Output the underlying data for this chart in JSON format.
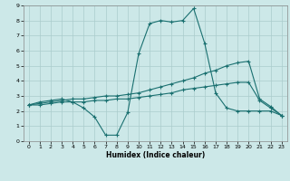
{
  "xlabel": "Humidex (Indice chaleur)",
  "background_color": "#cce8e8",
  "grid_color": "#aacccc",
  "line_color": "#1a7070",
  "xlim": [
    -0.5,
    23.5
  ],
  "ylim": [
    0,
    9
  ],
  "xticks": [
    0,
    1,
    2,
    3,
    4,
    5,
    6,
    7,
    8,
    9,
    10,
    11,
    12,
    13,
    14,
    15,
    16,
    17,
    18,
    19,
    20,
    21,
    22,
    23
  ],
  "yticks": [
    0,
    1,
    2,
    3,
    4,
    5,
    6,
    7,
    8,
    9
  ],
  "line1_x": [
    0,
    1,
    2,
    3,
    4,
    5,
    6,
    7,
    8,
    9,
    10,
    11,
    12,
    13,
    14,
    15,
    16,
    17,
    18,
    19,
    20,
    21,
    22,
    23
  ],
  "line1_y": [
    2.4,
    2.6,
    2.7,
    2.8,
    2.6,
    2.2,
    1.6,
    0.4,
    0.4,
    1.9,
    5.8,
    7.8,
    8.0,
    7.9,
    8.0,
    8.8,
    6.5,
    3.2,
    2.2,
    2.0,
    2.0,
    2.0,
    2.0,
    1.7
  ],
  "line2_x": [
    0,
    1,
    2,
    3,
    4,
    5,
    6,
    7,
    8,
    9,
    10,
    11,
    12,
    13,
    14,
    15,
    16,
    17,
    18,
    19,
    20,
    21,
    22,
    23
  ],
  "line2_y": [
    2.4,
    2.5,
    2.6,
    2.7,
    2.8,
    2.8,
    2.9,
    3.0,
    3.0,
    3.1,
    3.2,
    3.4,
    3.6,
    3.8,
    4.0,
    4.2,
    4.5,
    4.7,
    5.0,
    5.2,
    5.3,
    2.8,
    2.3,
    1.7
  ],
  "line3_x": [
    0,
    1,
    2,
    3,
    4,
    5,
    6,
    7,
    8,
    9,
    10,
    11,
    12,
    13,
    14,
    15,
    16,
    17,
    18,
    19,
    20,
    21,
    22,
    23
  ],
  "line3_y": [
    2.4,
    2.4,
    2.5,
    2.6,
    2.6,
    2.6,
    2.7,
    2.7,
    2.8,
    2.8,
    2.9,
    3.0,
    3.1,
    3.2,
    3.4,
    3.5,
    3.6,
    3.7,
    3.8,
    3.9,
    3.9,
    2.7,
    2.2,
    1.7
  ]
}
